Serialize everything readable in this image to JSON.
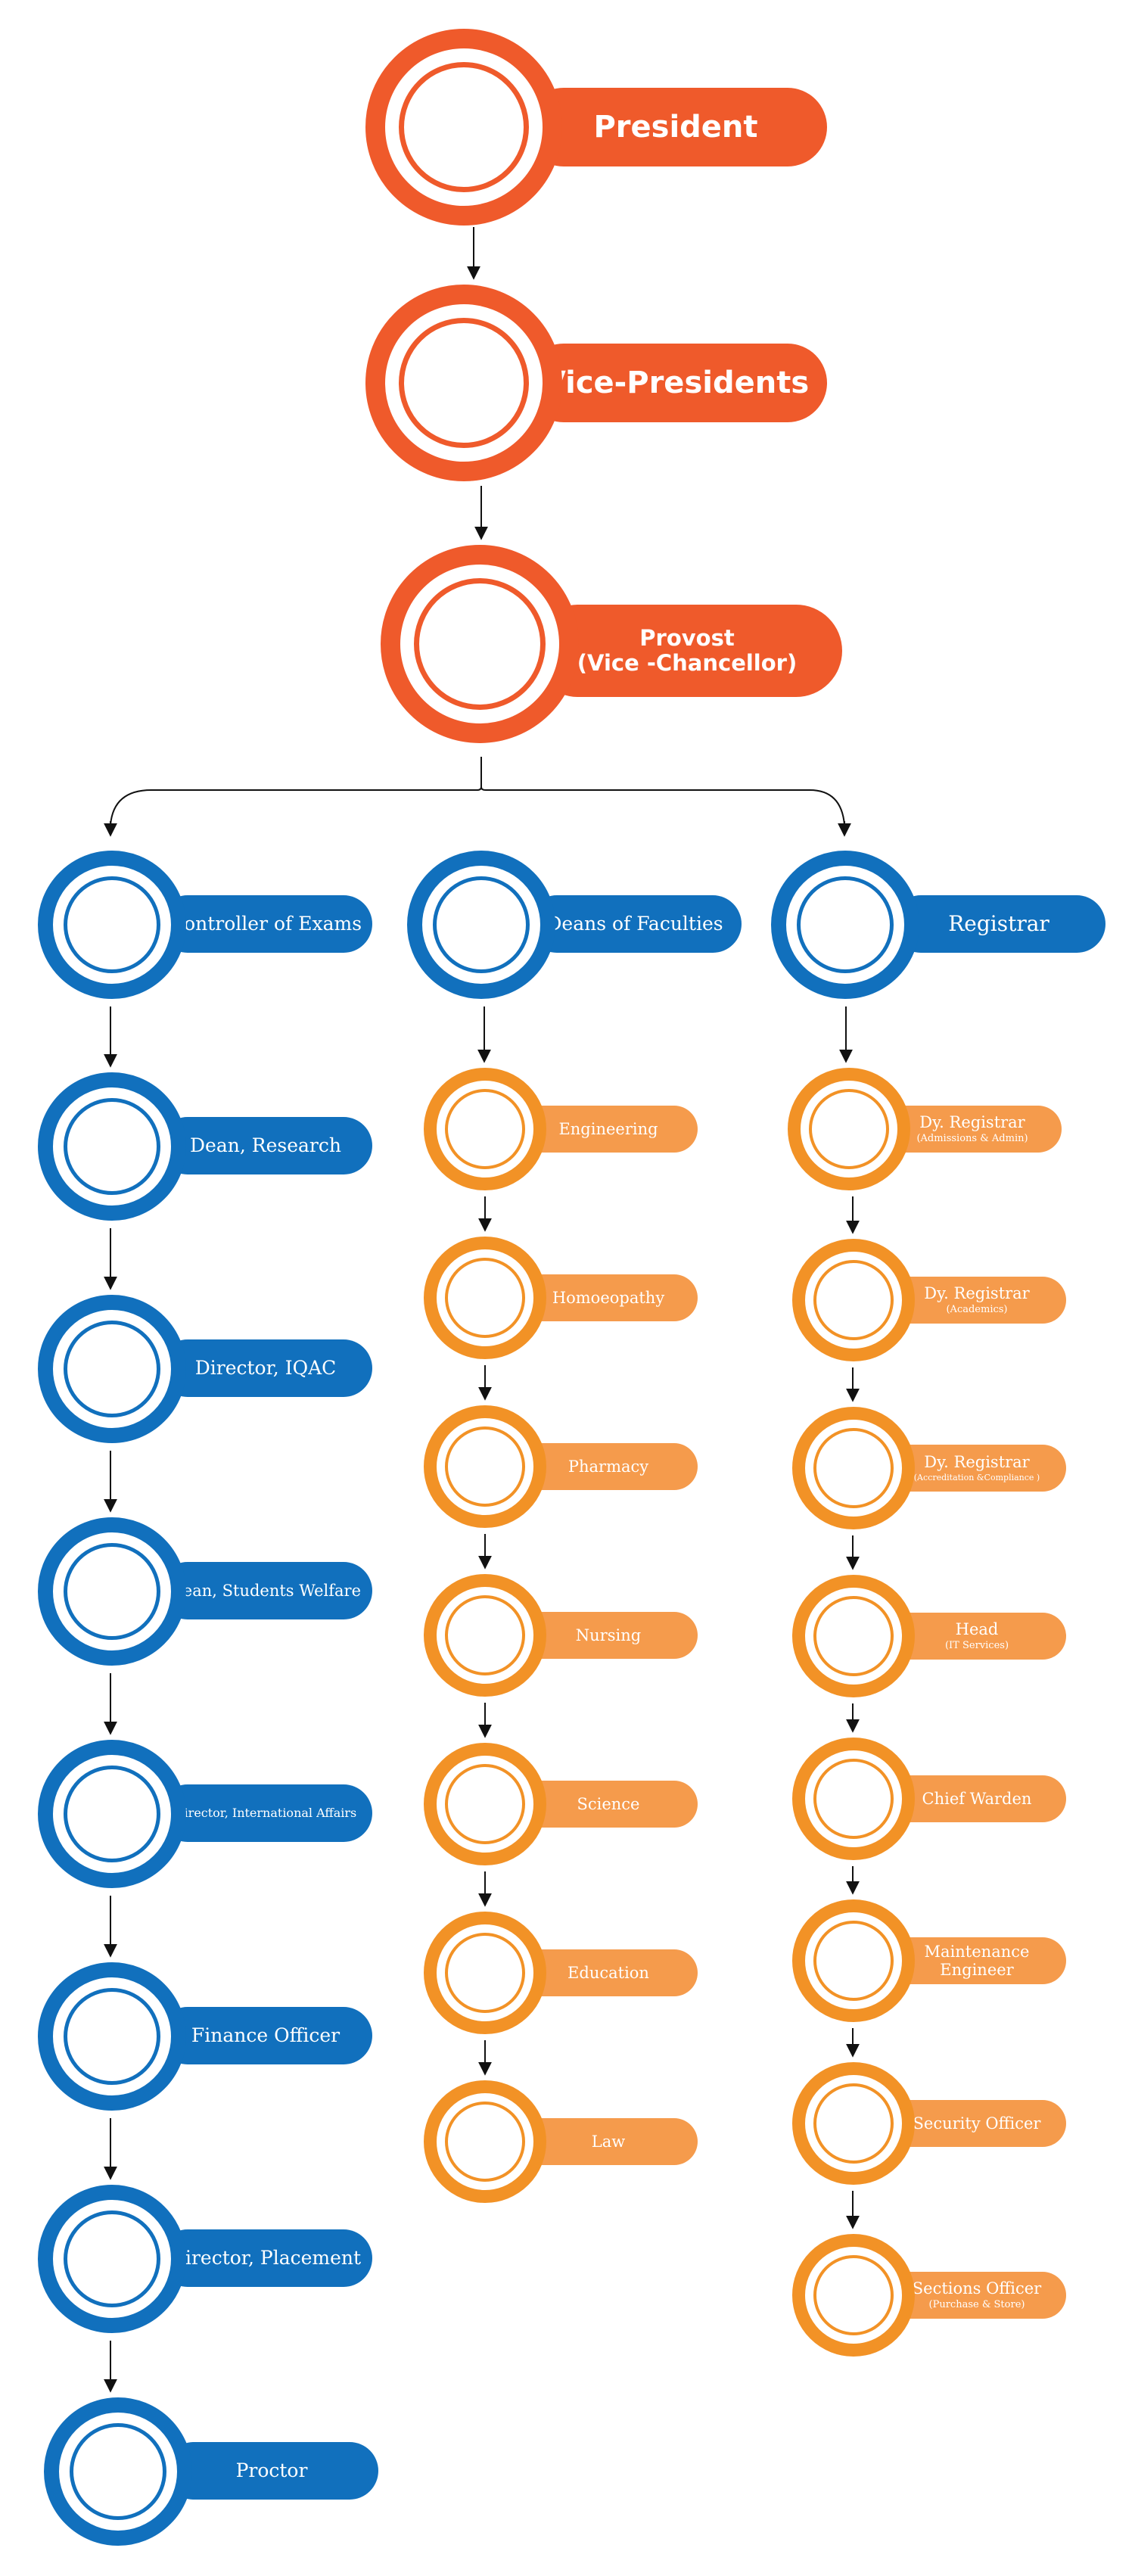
{
  "colors": {
    "top": "#ef5a2b",
    "left_column": "#1170bd",
    "faculty_ring": "#f29226",
    "faculty_pill": "#f59b4c",
    "connector": "#111111",
    "background": "#ffffff"
  },
  "top": [
    {
      "id": "president",
      "label": "President"
    },
    {
      "id": "vice-presidents",
      "label": "Vice-Presidents"
    },
    {
      "id": "provost",
      "label": "Provost",
      "sub": "(Vice -Chancellor)"
    }
  ],
  "columns": {
    "exams": [
      {
        "id": "controller-of-exams",
        "label": "Controller of Exams"
      },
      {
        "id": "dean-research",
        "label": "Dean, Research"
      },
      {
        "id": "director-iqac",
        "label": "Director, IQAC"
      },
      {
        "id": "dean-students-welfare",
        "label": "Dean, Students Welfare"
      },
      {
        "id": "director-international-affairs",
        "label": "Director, International Affairs"
      },
      {
        "id": "finance-officer",
        "label": "Finance Officer"
      },
      {
        "id": "director-placement",
        "label": "Director, Placement"
      },
      {
        "id": "proctor",
        "label": "Proctor"
      }
    ],
    "faculties": [
      {
        "id": "deans-of-faculties",
        "label": "Deans of Faculties"
      },
      {
        "id": "engineering",
        "label": "Engineering"
      },
      {
        "id": "homoeopathy",
        "label": "Homoeopathy"
      },
      {
        "id": "pharmacy",
        "label": "Pharmacy"
      },
      {
        "id": "nursing",
        "label": "Nursing"
      },
      {
        "id": "science",
        "label": "Science"
      },
      {
        "id": "education",
        "label": "Education"
      },
      {
        "id": "law",
        "label": "Law"
      }
    ],
    "registrar": [
      {
        "id": "registrar",
        "label": "Registrar"
      },
      {
        "id": "dy-registrar-admissions",
        "label": "Dy. Registrar",
        "sub": "(Admissions & Admin)"
      },
      {
        "id": "dy-registrar-academics",
        "label": "Dy. Registrar",
        "sub": "(Academics)"
      },
      {
        "id": "dy-registrar-accreditation",
        "label": "Dy. Registrar",
        "sub": "(Accreditation &Compliance )"
      },
      {
        "id": "head-it",
        "label": "Head",
        "sub": "(IT Services)"
      },
      {
        "id": "chief-warden",
        "label": "Chief Warden"
      },
      {
        "id": "maintenance-engineer",
        "label": "Maintenance Engineer"
      },
      {
        "id": "security-officer",
        "label": "Security Officer"
      },
      {
        "id": "sections-officer",
        "label": "Sections Officer",
        "sub": "(Purchase & Store)"
      }
    ]
  }
}
